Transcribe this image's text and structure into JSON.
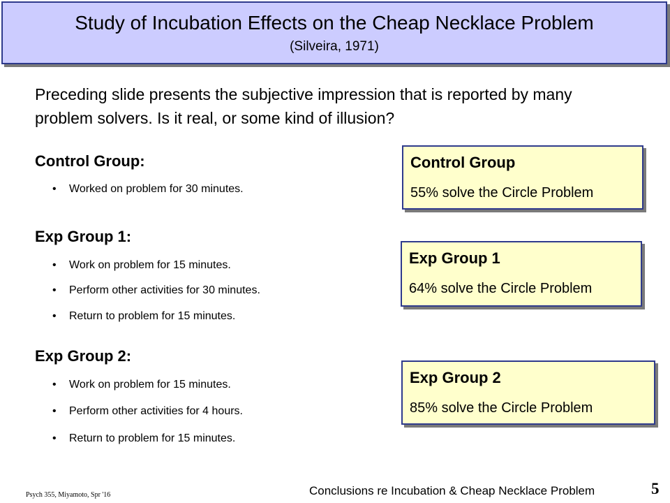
{
  "title": {
    "main": "Study of Incubation Effects on the Cheap Necklace Problem",
    "citation": "(Silveira, 1971)"
  },
  "intro": "Preceding slide presents the subjective impression that is reported by many problem solvers.  Is it real, or some kind of illusion?",
  "groups": [
    {
      "heading": "Control Group:",
      "bullets": [
        "Worked on problem for 30 minutes."
      ]
    },
    {
      "heading": "Exp Group 1:",
      "bullets": [
        "Work on problem for 15 minutes.",
        "Perform other activities for 30 minutes.",
        "Return to problem for 15 minutes."
      ]
    },
    {
      "heading": "Exp Group 2:",
      "bullets": [
        "Work on problem for 15 minutes.",
        "Perform other activities for 4 hours.",
        "Return to problem for 15 minutes."
      ]
    }
  ],
  "bullet_glyph": "•",
  "results": [
    {
      "title": "Control Group",
      "stat": "55%  solve the Circle Problem"
    },
    {
      "title": "Exp Group 1",
      "stat": "64%  solve the Circle Problem"
    },
    {
      "title": "Exp Group 2",
      "stat": "85%  solve the Circle Problem"
    }
  ],
  "footer": {
    "course": "Psych 355, Miyamoto, Spr '16",
    "caption": "Conclusions re Incubation & Cheap Necklace Problem",
    "page_number": "5"
  },
  "colors": {
    "title_fill": "#ccccff",
    "result_fill": "#ffffcc",
    "border": "#2e3a8c"
  }
}
